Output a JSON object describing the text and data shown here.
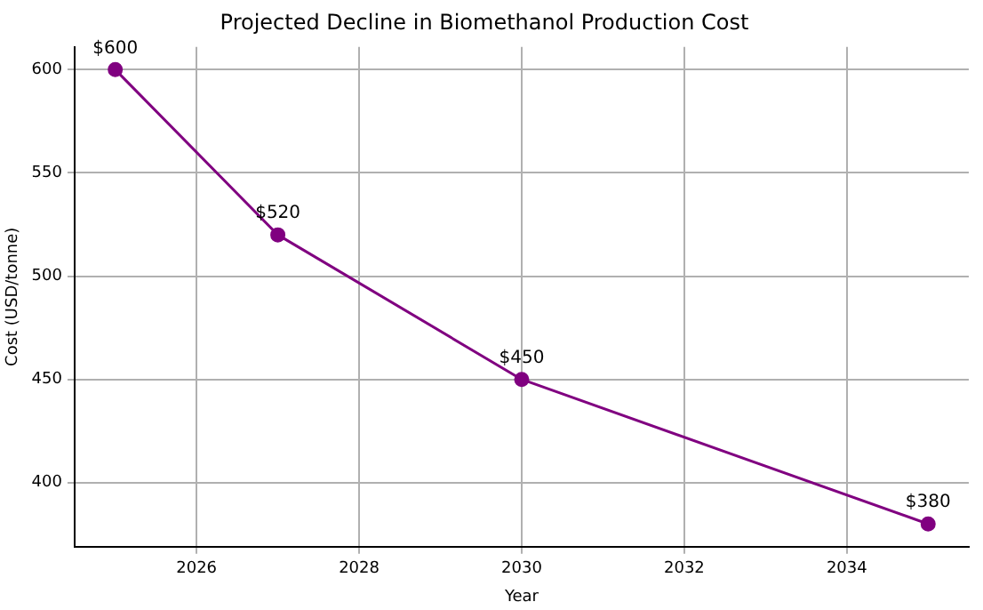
{
  "chart_data": {
    "type": "line",
    "title": "Projected Decline in Biomethanol Production Cost",
    "xlabel": "Year",
    "ylabel": "Cost (USD/tonne)",
    "x": [
      2025,
      2027,
      2030,
      2035
    ],
    "series": [
      {
        "color": "#800080",
        "values": [
          600,
          520,
          450,
          380
        ],
        "value_labels": [
          "$600",
          "$520",
          "$450",
          "$380"
        ]
      }
    ],
    "xlim": [
      2024.5,
      2035.5
    ],
    "ylim": [
      369,
      611
    ],
    "xticks": [
      2026,
      2028,
      2030,
      2032,
      2034
    ],
    "yticks": [
      400,
      450,
      500,
      550,
      600
    ],
    "grid": true,
    "legend": false,
    "marker": "circle",
    "line_style": "solid"
  }
}
